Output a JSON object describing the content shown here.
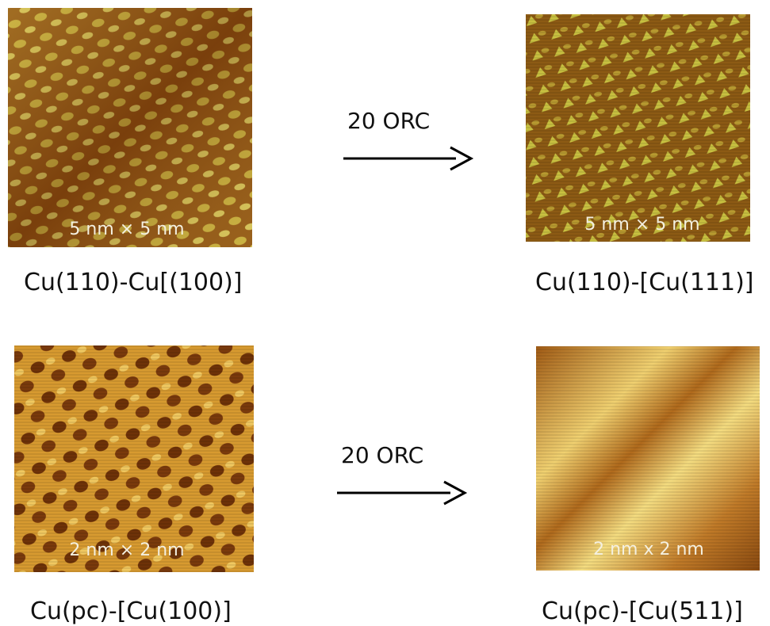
{
  "rows": [
    {
      "left": {
        "scale": "5 nm × 5 nm",
        "caption": "Cu(110)-Cu[(100)]"
      },
      "arrow": "20 ORC",
      "right": {
        "scale": "5 nm × 5 nm",
        "caption": "Cu(110)-[Cu(111)]"
      }
    },
    {
      "left": {
        "scale": "2 nm × 2 nm",
        "caption": "Cu(pc)-[Cu(100)]"
      },
      "arrow": "20 ORC",
      "right": {
        "scale": "2 nm x 2 nm",
        "caption": "Cu(pc)-[Cu(511)]"
      }
    }
  ]
}
